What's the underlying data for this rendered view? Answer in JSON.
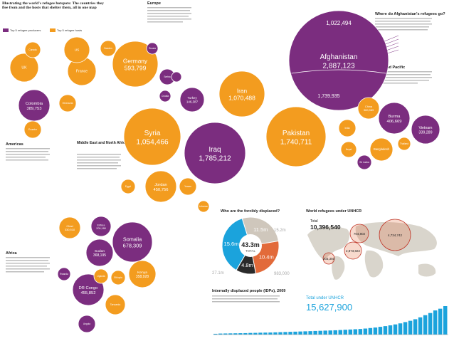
{
  "header": {
    "title": "Illustrating the world's refugee hotspots: The countries they flee from and the hosts that shelter them, all in one map"
  },
  "legend": {
    "items": [
      {
        "label": "Top 5 refugee producers",
        "color": "#7b2d7f"
      },
      {
        "label": "Top 5 refugee hosts",
        "color": "#f39c1f"
      }
    ]
  },
  "colors": {
    "origin": "#7b2d7f",
    "host": "#f39c1f",
    "box": "#4a4a4a",
    "bar": "#1ba3dc",
    "map": "#d9d5cc"
  },
  "regions": [
    {
      "name": "Europe"
    },
    {
      "name": "Americas"
    },
    {
      "name": "Middle East and North Africa"
    },
    {
      "name": "Africa"
    },
    {
      "name": "Asia and Pacific"
    }
  ],
  "afghan_box": {
    "title": "Where do Afghanistan's refugees go?"
  },
  "chart_data": [
    {
      "type": "bubble",
      "title": "Illustrating the world's refugee hotspots",
      "series": [
        {
          "name": "Afghanistan",
          "value": 2887123,
          "group": "origin",
          "labels": [
            "1,022,494",
            "1,739,935"
          ]
        },
        {
          "name": "Pakistan",
          "value": 1740711,
          "group": "host"
        },
        {
          "name": "Iraq",
          "value": 1785212,
          "group": "origin"
        },
        {
          "name": "Iran",
          "value": 1070488,
          "group": "host"
        },
        {
          "name": "Syria",
          "value": 1054466,
          "group": "host"
        },
        {
          "name": "Germany",
          "value": 593799,
          "group": "host"
        },
        {
          "name": "Somalia",
          "value": 678309,
          "group": "origin"
        },
        {
          "name": "Jordan",
          "value": 450756,
          "group": "host"
        },
        {
          "name": "Colombia",
          "value": 389753,
          "group": "origin"
        },
        {
          "name": "Burma",
          "value": 406669,
          "group": "origin"
        },
        {
          "name": "Vietnam",
          "value": 339289,
          "group": "origin"
        },
        {
          "name": "China",
          "value": 300989,
          "group": "host"
        },
        {
          "name": "DR Congo",
          "value": 455852,
          "group": "origin"
        },
        {
          "name": "Sudan",
          "value": 368195,
          "group": "origin"
        },
        {
          "name": "Kenya",
          "value": 358928,
          "group": "host"
        },
        {
          "name": "Chad",
          "value": 330510,
          "group": "host"
        },
        {
          "name": "Eritrea",
          "value": 209168,
          "group": "origin"
        },
        {
          "name": "Ethiopia",
          "value": null,
          "group": "host"
        },
        {
          "name": "Uganda",
          "value": null,
          "group": "host"
        },
        {
          "name": "Tanzania",
          "value": null,
          "group": "host"
        },
        {
          "name": "Angola",
          "value": null,
          "group": "origin"
        },
        {
          "name": "Rwanda",
          "value": null,
          "group": "origin"
        },
        {
          "name": "Serbia",
          "value": null,
          "group": "origin"
        },
        {
          "name": "Turkey",
          "value": 146387,
          "group": "origin"
        },
        {
          "name": "Russia",
          "value": null,
          "group": "origin"
        },
        {
          "name": "Bosnia",
          "value": null,
          "group": "origin"
        },
        {
          "name": "Croatia",
          "value": null,
          "group": "origin"
        },
        {
          "name": "UK",
          "value": null,
          "group": "host"
        },
        {
          "name": "France",
          "value": null,
          "group": "host"
        },
        {
          "name": "US",
          "value": null,
          "group": "host"
        },
        {
          "name": "Canada",
          "value": null,
          "group": "host"
        },
        {
          "name": "Venezuela",
          "value": null,
          "group": "host"
        },
        {
          "name": "Ecuador",
          "value": null,
          "group": "host"
        },
        {
          "name": "India",
          "value": null,
          "group": "host"
        },
        {
          "name": "Nepal",
          "value": null,
          "group": "host"
        },
        {
          "name": "Bangladesh",
          "value": null,
          "group": "host"
        },
        {
          "name": "Sri Lanka",
          "value": null,
          "group": "origin"
        },
        {
          "name": "Thailand",
          "value": null,
          "group": "host"
        },
        {
          "name": "Egypt",
          "value": null,
          "group": "host"
        },
        {
          "name": "Yemen",
          "value": null,
          "group": "host"
        },
        {
          "name": "Lebanon",
          "value": null,
          "group": "host"
        },
        {
          "name": "Sweden",
          "value": null,
          "group": "host"
        }
      ]
    },
    {
      "type": "pie",
      "title": "Who are the forcibly displaced?",
      "center_value": "43.3m",
      "center_label": "TOTAL",
      "slices": [
        {
          "label": "11.5m",
          "value": 11.5
        },
        {
          "label": "10.4m",
          "value": 10.4
        },
        {
          "label": "4.8m",
          "value": 4.8
        },
        {
          "label": "15.6m",
          "value": 15.6
        }
      ],
      "outer_labels": [
        "15.2m",
        "27.1m",
        "983,000"
      ]
    },
    {
      "type": "bubble_map",
      "title": "World refugees under UNHCR",
      "total_label": "Total",
      "total_value": "10,396,540",
      "bubbles": [
        {
          "value": "704,802"
        },
        {
          "value": "4,734,742"
        },
        {
          "value": "2,873,822"
        },
        {
          "value": "203,350"
        }
      ]
    },
    {
      "type": "bar",
      "title": "Internally displaced people (IDPs), 2009",
      "summary_label": "Total under UNHCR",
      "summary_value": "15,627,900",
      "values": [
        90000,
        120000,
        130000,
        140000,
        150000,
        160000,
        170000,
        190000,
        200000,
        220000,
        230000,
        240000,
        260000,
        280000,
        300000,
        320000,
        340000,
        360000,
        380000,
        400000,
        420000,
        440000,
        460000,
        480000,
        500000,
        530000,
        560000,
        590000,
        620000,
        650000,
        700000,
        760000,
        820000,
        900000,
        980000,
        1070000,
        1180000,
        1300000,
        1450000,
        1600000,
        1780000,
        2000000,
        2250000,
        2500000,
        2800000,
        3000000,
        3300000
      ],
      "ylim": [
        0,
        3300000
      ]
    }
  ]
}
